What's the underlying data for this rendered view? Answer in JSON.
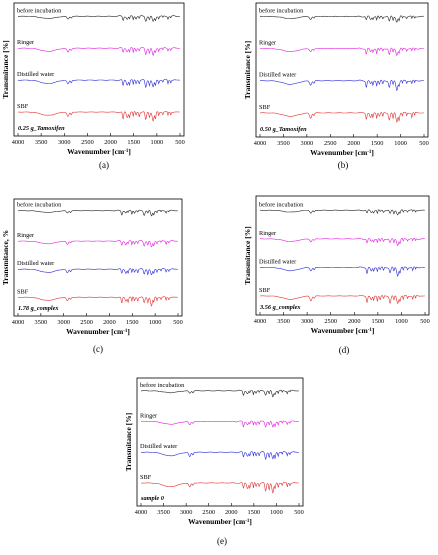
{
  "chart_data": [
    {
      "type": "line",
      "panel_label": "(a)",
      "annotation": "0.25 g_Tamoxifen",
      "xlabel": "Wavenumber [cm",
      "xlabel_sup": "-1",
      "xlabel_close": "]",
      "ylabel": "Transmitance [%]",
      "xlim": [
        4000,
        500
      ],
      "x_ticks": [
        "4000",
        "3500",
        "3000",
        "2500",
        "2000",
        "1500",
        "1000",
        "500"
      ],
      "grid": false,
      "series": [
        {
          "name": "before incubation",
          "color": "#222222",
          "label_side": "left"
        },
        {
          "name": "Ringer",
          "color": "#e020e0",
          "label_side": "left"
        },
        {
          "name": "Distilled water",
          "color": "#2a2ad8",
          "label_side": "left"
        },
        {
          "name": "SBF",
          "color": "#e03030",
          "label_side": "left"
        }
      ]
    },
    {
      "type": "line",
      "panel_label": "(b)",
      "annotation": "0.50 g_Tamoxifen",
      "xlabel": "Wavenumber [cm",
      "xlabel_sup": "-1",
      "xlabel_close": "]",
      "ylabel": "Transmitance [%]",
      "xlim": [
        4000,
        500
      ],
      "x_ticks": [
        "4000",
        "3500",
        "3000",
        "2500",
        "2000",
        "1500",
        "1000",
        "500"
      ],
      "grid": false,
      "series": [
        {
          "name": "before incubation",
          "color": "#222222"
        },
        {
          "name": "Ringer",
          "color": "#e020e0"
        },
        {
          "name": "Distilled water",
          "color": "#2a2ad8"
        },
        {
          "name": "SBF",
          "color": "#e03030"
        }
      ]
    },
    {
      "type": "line",
      "panel_label": "(c)",
      "annotation": "1.78 g_complex",
      "xlabel": "Wavenumber [cm",
      "xlabel_sup": "-1",
      "xlabel_close": "]",
      "ylabel": "Transmitance, %",
      "xlim": [
        4000,
        500
      ],
      "x_ticks": [
        "4000",
        "3500",
        "3000",
        "2500",
        "2000",
        "1500",
        "1000",
        "500"
      ],
      "grid": false,
      "series": [
        {
          "name": "before incubation",
          "color": "#222222"
        },
        {
          "name": "Ringer",
          "color": "#e020e0"
        },
        {
          "name": "Distilled water",
          "color": "#2a2ad8"
        },
        {
          "name": "SBF",
          "color": "#e03030"
        }
      ]
    },
    {
      "type": "line",
      "panel_label": "(d)",
      "annotation": "3.56 g_complex",
      "xlabel": "Wavenumber [cm",
      "xlabel_sup": "-1",
      "xlabel_close": "]",
      "ylabel": "Transmitance [%]",
      "xlim": [
        4000,
        500
      ],
      "x_ticks": [
        "4000",
        "3500",
        "3000",
        "2500",
        "2000",
        "1500",
        "1000",
        "500"
      ],
      "grid": false,
      "series": [
        {
          "name": "before incubation",
          "color": "#222222"
        },
        {
          "name": "Ringer",
          "color": "#e020e0"
        },
        {
          "name": "Distilled water",
          "color": "#2a2ad8"
        },
        {
          "name": "SBF",
          "color": "#e03030"
        }
      ]
    },
    {
      "type": "line",
      "panel_label": "(e)",
      "annotation": "sample 0",
      "xlabel": "Wavenumber [cm",
      "xlabel_sup": "-1",
      "xlabel_close": "]",
      "ylabel": "Transmitance [%]",
      "xlim": [
        4000,
        500
      ],
      "x_ticks": [
        "4000",
        "3500",
        "3000",
        "2500",
        "2000",
        "1500",
        "1000",
        "500"
      ],
      "grid": false,
      "series": [
        {
          "name": "before incubation",
          "color": "#222222"
        },
        {
          "name": "Ringer",
          "color": "#e020e0"
        },
        {
          "name": "Distilled water",
          "color": "#2a2ad8"
        },
        {
          "name": "SBF",
          "color": "#e03030"
        }
      ]
    }
  ]
}
